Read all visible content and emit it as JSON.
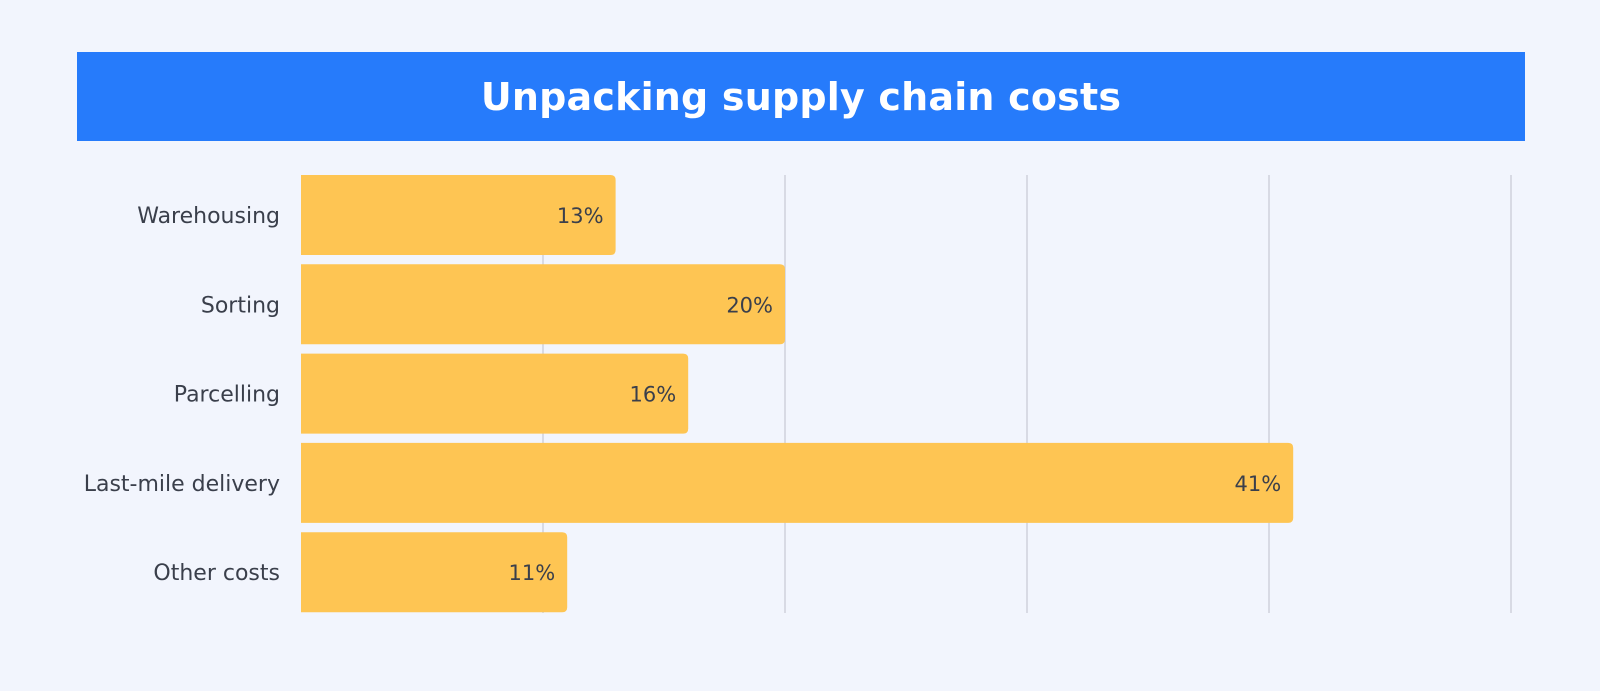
{
  "chart_data": {
    "type": "bar",
    "orientation": "horizontal",
    "title": "Unpacking supply chain costs",
    "categories": [
      "Warehousing",
      "Sorting",
      "Parcelling",
      "Last-mile delivery",
      "Other costs"
    ],
    "values": [
      13,
      20,
      16,
      41,
      11
    ],
    "value_labels": [
      "13%",
      "20%",
      "16%",
      "41%",
      "11%"
    ],
    "xlim": [
      0,
      50
    ],
    "x_gridlines": [
      10,
      20,
      30,
      40,
      50
    ],
    "grid": true,
    "bar_color": "#fec553",
    "title_background": "#267bfb",
    "title_color": "#ffffff",
    "text_color": "#3a3f4b",
    "grid_color": "#c9ccd6",
    "background": "#f2f5fd"
  }
}
